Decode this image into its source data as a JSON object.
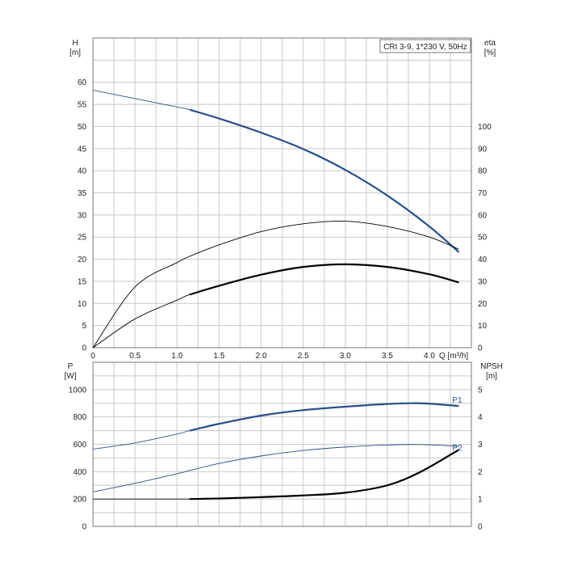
{
  "chart_data": [
    {
      "id": "top",
      "type": "line",
      "legend": "CRI 3-9, 1*230 V, 50Hz",
      "legend_position": "top-right",
      "grid": true,
      "y_left_title": [
        "H",
        "[m]"
      ],
      "y_right_title": [
        "eta",
        "[%]"
      ],
      "x_title": "Q [m³/h]",
      "xlim": [
        0,
        4.5
      ],
      "ylim": [
        0,
        70
      ],
      "y2lim": [
        0,
        140
      ],
      "x_ticks": [
        "0",
        "0.5",
        "1.0",
        "1.5",
        "2.0",
        "2.5",
        "3.0",
        "3.5",
        "4.0"
      ],
      "y_ticks": [
        "0",
        "5",
        "10",
        "15",
        "20",
        "25",
        "30",
        "35",
        "40",
        "45",
        "50",
        "55",
        "60"
      ],
      "y2_ticks": [
        "0",
        "10",
        "20",
        "30",
        "40",
        "50",
        "60",
        "70",
        "80",
        "90",
        "100"
      ],
      "series": [
        {
          "axis": "left",
          "color": "#2a4f8a",
          "bold_from": 1.15,
          "x": [
            0,
            0.5,
            1.0,
            1.15,
            1.5,
            2.0,
            2.5,
            3.0,
            3.5,
            4.0,
            4.35
          ],
          "y": [
            58.2,
            56.3,
            54.4,
            53.8,
            51.8,
            48.6,
            44.9,
            40.2,
            34.4,
            27.4,
            21.6
          ]
        },
        {
          "axis": "right",
          "color": "#000000",
          "bold_from": 99,
          "x": [
            0,
            0.5,
            1.0,
            1.15,
            1.5,
            2.0,
            2.5,
            3.0,
            3.5,
            4.0,
            4.35
          ],
          "y": [
            0,
            27.5,
            38.5,
            41.3,
            46.5,
            52.5,
            56,
            57.2,
            54.8,
            50,
            44.5
          ]
        },
        {
          "axis": "right",
          "color": "#000000",
          "bold_from": 1.15,
          "x": [
            0,
            0.5,
            1.0,
            1.15,
            1.5,
            2.0,
            2.5,
            3.0,
            3.5,
            4.0,
            4.35
          ],
          "y": [
            0,
            13,
            21.5,
            24,
            28,
            33,
            36.5,
            37.7,
            36.5,
            33.2,
            29.5
          ]
        }
      ]
    },
    {
      "id": "bottom",
      "type": "line",
      "grid": true,
      "y_left_title": [
        "P",
        "[W]"
      ],
      "y_right_title": [
        "NPSH",
        "[m]"
      ],
      "xlim": [
        0,
        4.5
      ],
      "ylim": [
        0,
        1200
      ],
      "y2lim": [
        0,
        6
      ],
      "y_ticks": [
        "0",
        "200",
        "400",
        "600",
        "800",
        "1000"
      ],
      "y2_ticks": [
        "0",
        "1",
        "2",
        "3",
        "4",
        "5"
      ],
      "series": [
        {
          "name": "P1",
          "axis": "left",
          "color": "#2a4f8a",
          "bold_from": 1.15,
          "x": [
            0,
            0.5,
            1.0,
            1.15,
            1.5,
            2.0,
            2.5,
            3.0,
            3.5,
            3.9,
            4.35
          ],
          "y": [
            565,
            610,
            675,
            700,
            750,
            810,
            850,
            875,
            895,
            900,
            880
          ]
        },
        {
          "name": "P2",
          "axis": "left",
          "color": "#2a4f8a",
          "bold_from": 99,
          "x": [
            0,
            0.5,
            1.0,
            1.15,
            1.5,
            2.0,
            2.5,
            3.0,
            3.5,
            3.9,
            4.35
          ],
          "y": [
            252,
            315,
            385,
            408,
            460,
            515,
            555,
            580,
            595,
            598,
            585
          ]
        },
        {
          "axis": "right",
          "color": "#000000",
          "bold_from": 1.15,
          "x": [
            0,
            0.5,
            1.0,
            1.15,
            1.5,
            2.0,
            2.5,
            3.0,
            3.5,
            3.9,
            4.35
          ],
          "y": [
            1.0,
            1.0,
            1.0,
            1.0,
            1.02,
            1.07,
            1.13,
            1.23,
            1.5,
            2.0,
            2.8
          ]
        }
      ]
    }
  ]
}
